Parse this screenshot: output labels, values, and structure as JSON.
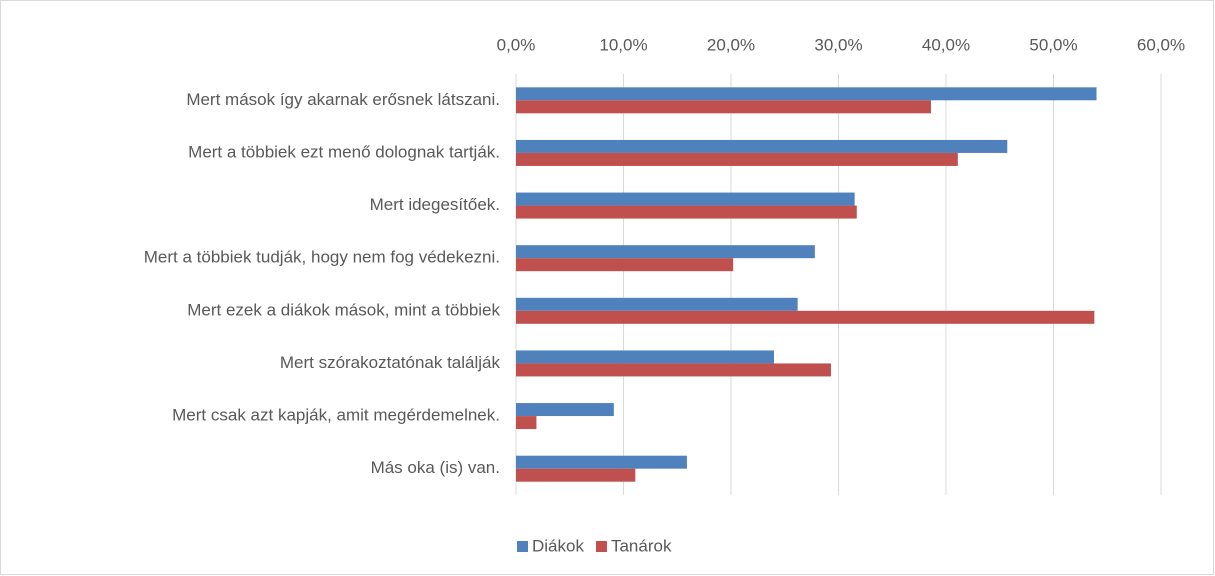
{
  "chart_data": {
    "type": "bar",
    "orientation": "horizontal",
    "categories": [
      "Mert mások így akarnak erősnek látszani.",
      "Mert a többiek ezt menő dolognak tartják.",
      "Mert idegesítőek.",
      "Mert a többiek tudják, hogy nem fog védekezni.",
      "Mert ezek a diákok mások, mint a többiek",
      "Mert szórakoztatónak találják",
      "Mert csak azt kapják, amit megérdemelnek.",
      "Más oka (is) van."
    ],
    "series": [
      {
        "name": "Diákok",
        "color": "#4f81bd",
        "values": [
          54.0,
          45.7,
          31.5,
          27.8,
          26.2,
          24.0,
          9.1,
          15.9
        ]
      },
      {
        "name": "Tanárok",
        "color": "#c0504d",
        "values": [
          38.6,
          41.1,
          31.7,
          20.2,
          53.8,
          29.3,
          1.9,
          11.1
        ]
      }
    ],
    "xlim": [
      0,
      60
    ],
    "xticks": [
      {
        "value": 0,
        "label": "0,0%"
      },
      {
        "value": 10,
        "label": "10,0%"
      },
      {
        "value": 20,
        "label": "20,0%"
      },
      {
        "value": 30,
        "label": "30,0%"
      },
      {
        "value": 40,
        "label": "40,0%"
      },
      {
        "value": 50,
        "label": "50,0%"
      },
      {
        "value": 60,
        "label": "60,0%"
      }
    ],
    "grid": true,
    "legend": "bottom"
  }
}
